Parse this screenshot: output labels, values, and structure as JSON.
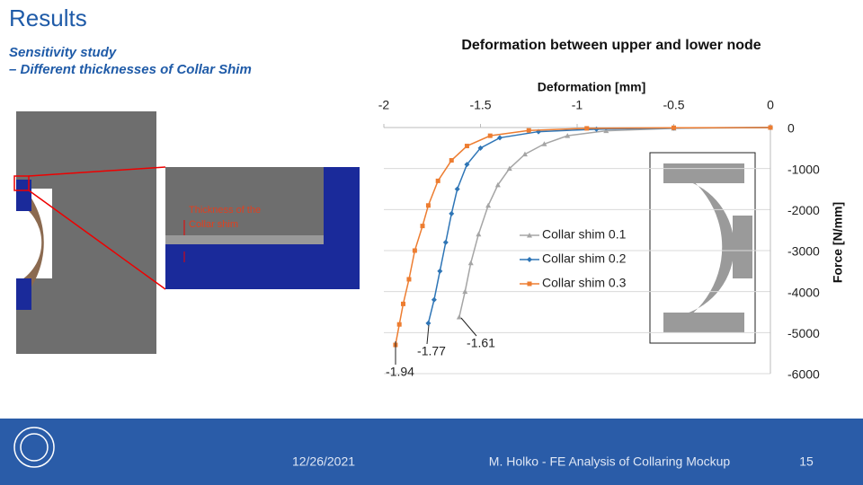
{
  "header": {
    "title": "Results",
    "subtitle": [
      "Sensitivity study",
      "– Different thicknesses of Collar Shim"
    ]
  },
  "image_annotation": [
    "Thickness of the",
    "Collar shim"
  ],
  "chart_data": {
    "type": "line",
    "title": "Deformation between upper and lower node",
    "x_label": "Deformation [mm]",
    "y_label": "Force [N/mm]",
    "xlim": [
      -2,
      0
    ],
    "xticks": [
      -2,
      -1.5,
      -1,
      -0.5,
      0
    ],
    "ylim": [
      -6000,
      0
    ],
    "yticks": [
      0,
      -1000,
      -2000,
      -3000,
      -4000,
      -5000,
      -6000
    ],
    "grid": true,
    "series": [
      {
        "name": "Collar shim 0.1",
        "color": "#a5a5a5",
        "marker": "triangle",
        "x": [
          -1.61,
          -1.58,
          -1.55,
          -1.51,
          -1.46,
          -1.41,
          -1.35,
          -1.27,
          -1.17,
          -1.05,
          -0.85,
          -0.5,
          0
        ],
        "values": [
          -4620,
          -4000,
          -3300,
          -2600,
          -1900,
          -1400,
          -1000,
          -650,
          -400,
          -200,
          -80,
          -20,
          0
        ]
      },
      {
        "name": "Collar shim 0.2",
        "color": "#2e75b6",
        "marker": "diamond",
        "x": [
          -1.77,
          -1.74,
          -1.71,
          -1.68,
          -1.65,
          -1.62,
          -1.57,
          -1.5,
          -1.4,
          -1.2,
          -0.9,
          -0.5,
          0
        ],
        "values": [
          -4770,
          -4200,
          -3500,
          -2800,
          -2100,
          -1500,
          -900,
          -500,
          -250,
          -100,
          -40,
          -10,
          0
        ]
      },
      {
        "name": "Collar shim 0.3",
        "color": "#ed7d31",
        "marker": "square",
        "x": [
          -1.94,
          -1.92,
          -1.9,
          -1.87,
          -1.84,
          -1.8,
          -1.77,
          -1.72,
          -1.65,
          -1.57,
          -1.45,
          -1.25,
          -0.95,
          -0.5,
          0
        ],
        "values": [
          -5300,
          -4800,
          -4300,
          -3700,
          -3000,
          -2400,
          -1900,
          -1300,
          -800,
          -450,
          -200,
          -70,
          -20,
          -5,
          0
        ]
      }
    ],
    "annotations": [
      -1.94,
      -1.77,
      -1.61
    ]
  },
  "footer": {
    "date": "12/26/2021",
    "author": "M. Holko - FE Analysis of Collaring Mockup",
    "page": "15"
  }
}
